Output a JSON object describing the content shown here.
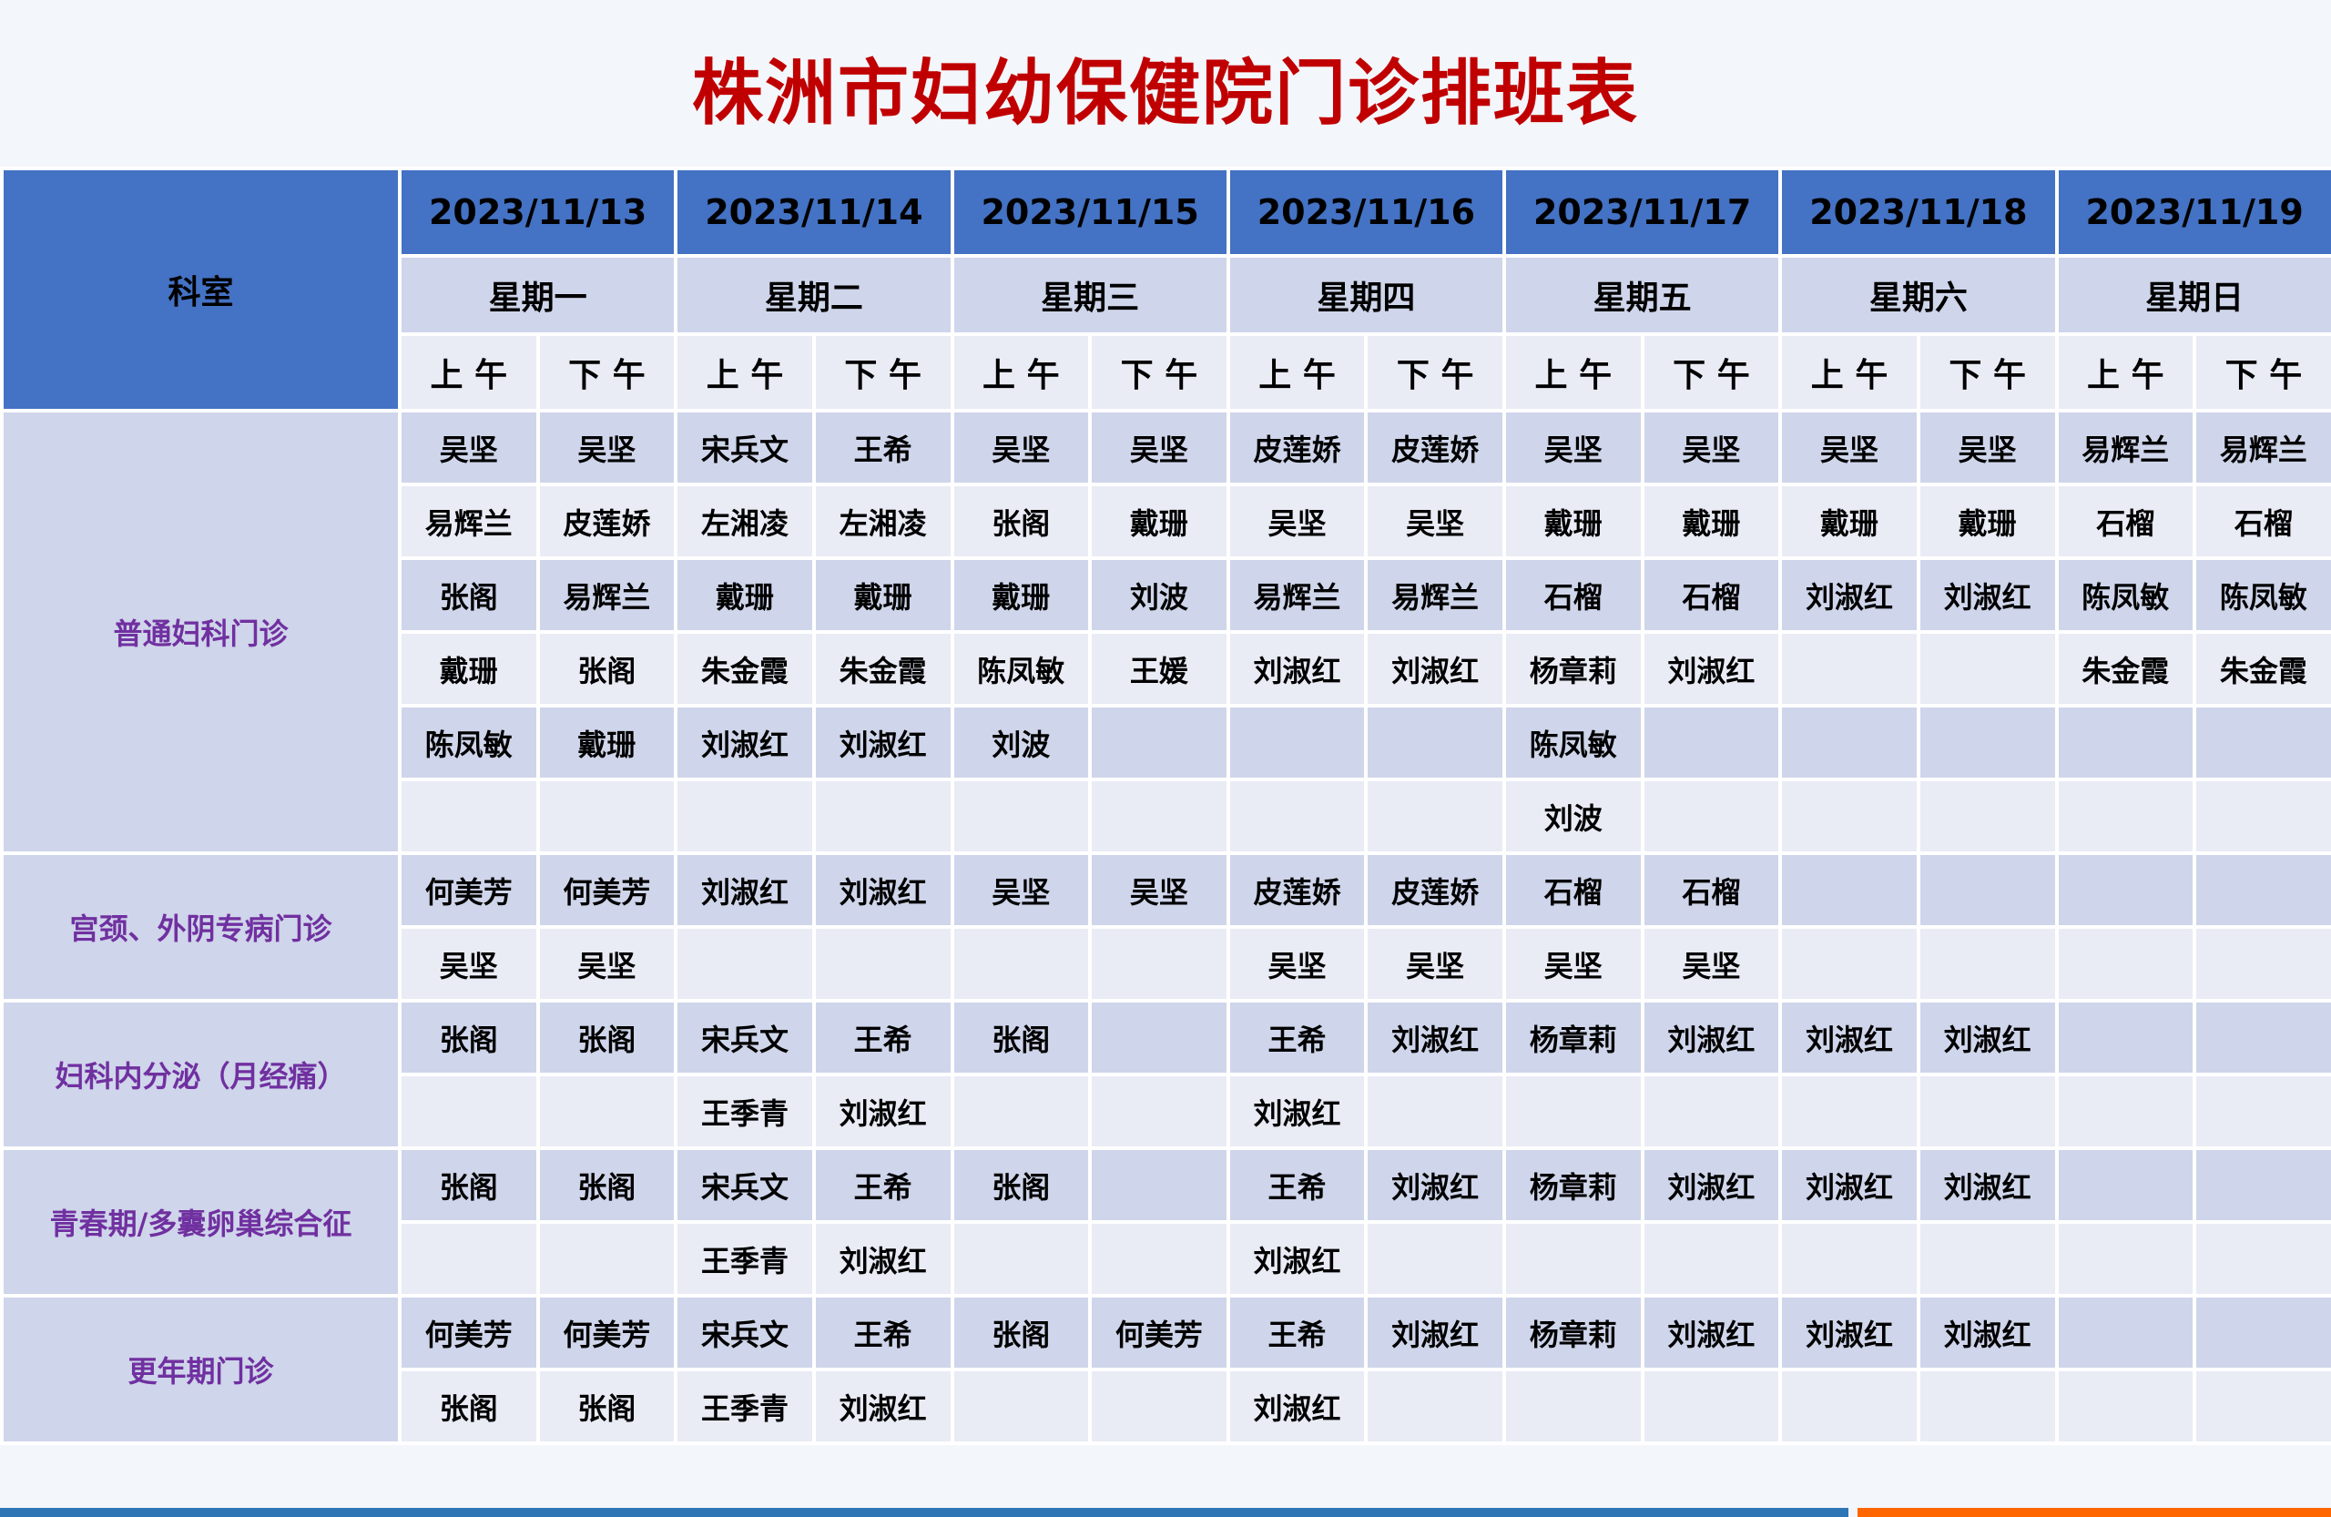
{
  "title": "株洲市妇幼保健院门诊排班表",
  "colors": {
    "title": "#c00000",
    "header_blue": "#4472c4",
    "row_dark": "#cfd5ea",
    "row_light": "#e9ebf5",
    "dept_text": "#7030a0",
    "bottom_blue": "#2e75b6",
    "bottom_orange": "#ff6600"
  },
  "header": {
    "dept_label": "科室",
    "dates": [
      "2023/11/13",
      "2023/11/14",
      "2023/11/15",
      "2023/11/16",
      "2023/11/17",
      "2023/11/18",
      "2023/11/19"
    ],
    "weekdays": [
      "星期一",
      "星期二",
      "星期三",
      "星期四",
      "星期五",
      "星期六",
      "星期日"
    ],
    "am": "上 午",
    "pm": "下 午"
  },
  "departments": [
    {
      "name": "普通妇科门诊",
      "rows": [
        [
          "吴坚",
          "吴坚",
          "宋兵文",
          "王希",
          "吴坚",
          "吴坚",
          "皮莲娇",
          "皮莲娇",
          "吴坚",
          "吴坚",
          "吴坚",
          "吴坚",
          "易辉兰",
          "易辉兰"
        ],
        [
          "易辉兰",
          "皮莲娇",
          "左湘凌",
          "左湘凌",
          "张阁",
          "戴珊",
          "吴坚",
          "吴坚",
          "戴珊",
          "戴珊",
          "戴珊",
          "戴珊",
          "石榴",
          "石榴"
        ],
        [
          "张阁",
          "易辉兰",
          "戴珊",
          "戴珊",
          "戴珊",
          "刘波",
          "易辉兰",
          "易辉兰",
          "石榴",
          "石榴",
          "刘淑红",
          "刘淑红",
          "陈凤敏",
          "陈凤敏"
        ],
        [
          "戴珊",
          "张阁",
          "朱金霞",
          "朱金霞",
          "陈凤敏",
          "王媛",
          "刘淑红",
          "刘淑红",
          "杨章莉",
          "刘淑红",
          "",
          "",
          "朱金霞",
          "朱金霞"
        ],
        [
          "陈凤敏",
          "戴珊",
          "刘淑红",
          "刘淑红",
          "刘波",
          "",
          "",
          "",
          "陈凤敏",
          "",
          "",
          "",
          "",
          ""
        ],
        [
          "",
          "",
          "",
          "",
          "",
          "",
          "",
          "",
          "刘波",
          "",
          "",
          "",
          "",
          ""
        ]
      ]
    },
    {
      "name": "宫颈、外阴专病门诊",
      "rows": [
        [
          "何美芳",
          "何美芳",
          "刘淑红",
          "刘淑红",
          "吴坚",
          "吴坚",
          "皮莲娇",
          "皮莲娇",
          "石榴",
          "石榴",
          "",
          "",
          "",
          ""
        ],
        [
          "吴坚",
          "吴坚",
          "",
          "",
          "",
          "",
          "吴坚",
          "吴坚",
          "吴坚",
          "吴坚",
          "",
          "",
          "",
          ""
        ]
      ]
    },
    {
      "name": "妇科内分泌（月经痛）",
      "rows": [
        [
          "张阁",
          "张阁",
          "宋兵文",
          "王希",
          "张阁",
          "",
          "王希",
          "刘淑红",
          "杨章莉",
          "刘淑红",
          "刘淑红",
          "刘淑红",
          "",
          ""
        ],
        [
          "",
          "",
          "王季青",
          "刘淑红",
          "",
          "",
          "刘淑红",
          "",
          "",
          "",
          "",
          "",
          "",
          ""
        ]
      ]
    },
    {
      "name": "青春期/多囊卵巢综合征",
      "rows": [
        [
          "张阁",
          "张阁",
          "宋兵文",
          "王希",
          "张阁",
          "",
          "王希",
          "刘淑红",
          "杨章莉",
          "刘淑红",
          "刘淑红",
          "刘淑红",
          "",
          ""
        ],
        [
          "",
          "",
          "王季青",
          "刘淑红",
          "",
          "",
          "刘淑红",
          "",
          "",
          "",
          "",
          "",
          "",
          ""
        ]
      ]
    },
    {
      "name": "更年期门诊",
      "rows": [
        [
          "何美芳",
          "何美芳",
          "宋兵文",
          "王希",
          "张阁",
          "何美芳",
          "王希",
          "刘淑红",
          "杨章莉",
          "刘淑红",
          "刘淑红",
          "刘淑红",
          "",
          ""
        ],
        [
          "张阁",
          "张阁",
          "王季青",
          "刘淑红",
          "",
          "",
          "刘淑红",
          "",
          "",
          "",
          "",
          "",
          "",
          ""
        ]
      ]
    }
  ]
}
